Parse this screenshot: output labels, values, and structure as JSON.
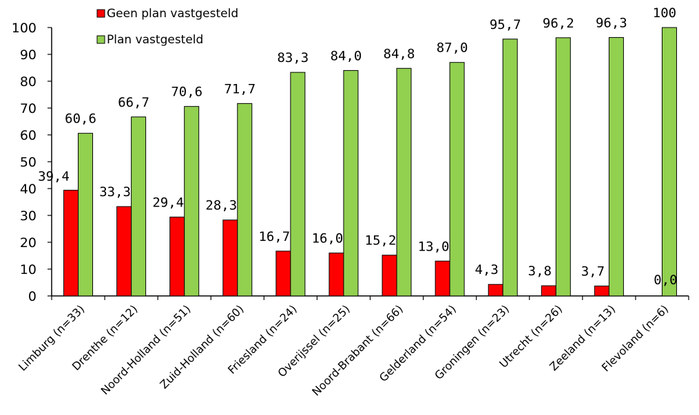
{
  "chart_data": {
    "type": "bar",
    "categories": [
      "Limburg (n=33)",
      "Drenthe (n=12)",
      "Noord-Holland (n=51)",
      "Zuid-Holland (n=60)",
      "Friesland (n=24)",
      "Overijssel (n=25)",
      "Noord-Brabant (n=66)",
      "Gelderland (n=54)",
      "Groningen (n=23)",
      "Utrecht (n=26)",
      "Zeeland (n=13)",
      "Flevoland (n=6)"
    ],
    "series": [
      {
        "name": "Geen plan vastgesteld",
        "color": "#ff0000",
        "values": [
          39.4,
          33.3,
          29.4,
          28.3,
          16.7,
          16.0,
          15.2,
          13.0,
          4.3,
          3.8,
          3.7,
          0.0
        ],
        "labels": [
          "39,4",
          "33,3",
          "29,4",
          "28,3",
          "16,7",
          "16,0",
          "15,2",
          "13,0",
          "4,3",
          "3,8",
          "3,7",
          "0,0"
        ]
      },
      {
        "name": "Plan vastgesteld",
        "color": "#92d050",
        "values": [
          60.6,
          66.7,
          70.6,
          71.7,
          83.3,
          84.0,
          84.8,
          87.0,
          95.7,
          96.2,
          96.3,
          100
        ],
        "labels": [
          "60,6",
          "66,7",
          "70,6",
          "71,7",
          "83,3",
          "84,0",
          "84,8",
          "87,0",
          "95,7",
          "96,2",
          "96,3",
          "100"
        ]
      }
    ],
    "yticks": [
      "0",
      "10",
      "20",
      "30",
      "40",
      "50",
      "60",
      "70",
      "80",
      "90",
      "100"
    ],
    "ylim": [
      0,
      100
    ],
    "grid": false,
    "legend": "top-left",
    "xlabel": "",
    "ylabel": ""
  }
}
